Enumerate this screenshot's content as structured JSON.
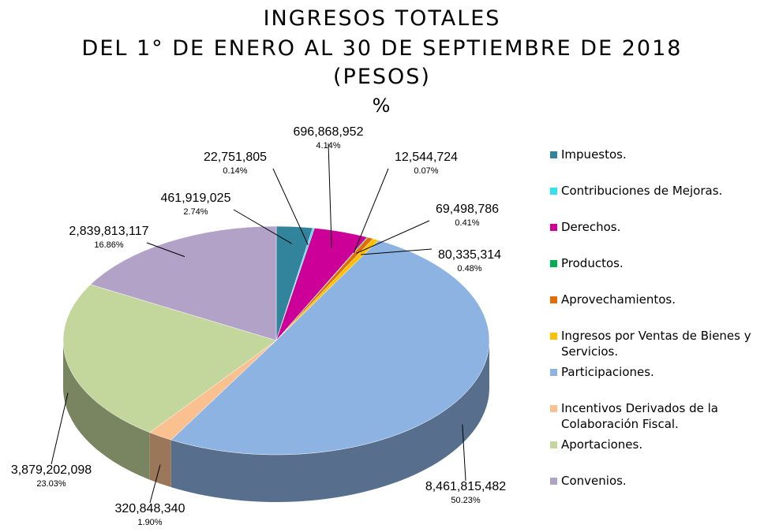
{
  "chart_data": {
    "type": "pie3d",
    "title": [
      "INGRESOS TOTALES",
      "DEL 1° DE ENERO AL 30 DE SEPTIEMBRE DE 2018",
      "(PESOS)",
      "%"
    ],
    "categories": [
      "Impuestos.",
      "Contribuciones de Mejoras.",
      "Derechos.",
      "Productos.",
      "Aprovechamientos.",
      "Ingresos por Ventas de Bienes y Servicios.",
      "Participaciones.",
      "Incentivos Derivados de la Colaboración Fiscal.",
      "Aportaciones.",
      "Convenios."
    ],
    "values": [
      461919025,
      22751805,
      696868952,
      12544724,
      69498786,
      80335314,
      8461815482,
      320848340,
      3879202098,
      2839813117
    ],
    "value_labels": [
      "461,919,025",
      "22,751,805",
      "696,868,952",
      "12,544,724",
      "69,498,786",
      "80,335,314",
      "8,461,815,482",
      "320,848,340",
      "3,879,202,098",
      "2,839,813,117"
    ],
    "percents": [
      2.74,
      0.14,
      4.14,
      0.07,
      0.41,
      0.48,
      50.23,
      1.9,
      23.03,
      16.86
    ],
    "percent_labels": [
      "2.74%",
      "0.14%",
      "4.14%",
      "0.07%",
      "0.41%",
      "0.48%",
      "50.23%",
      "1.90%",
      "23.03%",
      "16.86%"
    ],
    "colors": [
      "#31849b",
      "#33e0f0",
      "#cc0099",
      "#00b050",
      "#e36c09",
      "#ffc000",
      "#8db3e2",
      "#fac090",
      "#c3d69b",
      "#b3a2c7"
    ],
    "legend": "right"
  }
}
